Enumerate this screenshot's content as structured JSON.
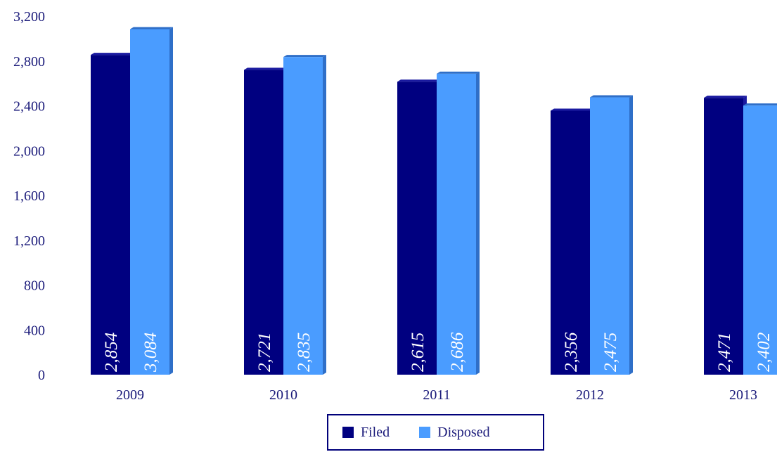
{
  "chart_data": {
    "type": "bar",
    "categories": [
      "2009",
      "2010",
      "2011",
      "2012",
      "2013"
    ],
    "series": [
      {
        "name": "Filed",
        "values": [
          2854,
          2721,
          2615,
          2356,
          2471
        ],
        "labels": [
          "2,854",
          "2,721",
          "2,615",
          "2,356",
          "2,471"
        ]
      },
      {
        "name": "Disposed",
        "values": [
          3084,
          2835,
          2686,
          2475,
          2402
        ],
        "labels": [
          "3,084",
          "2,835",
          "2,686",
          "2,475",
          "2,402"
        ]
      }
    ],
    "ylim": [
      0,
      3200
    ],
    "yticks": [
      0,
      400,
      800,
      1200,
      1600,
      2000,
      2400,
      2800,
      3200
    ],
    "ytick_labels": [
      "0",
      "400",
      "800",
      "1,200",
      "1,600",
      "2,000",
      "2,400",
      "2,800",
      "3,200"
    ],
    "grid": false,
    "legend_position": "bottom-center",
    "colors": {
      "Filed": "#000080",
      "Disposed": "#4a9cff",
      "Filed_side": "#1a1aa0",
      "Disposed_side": "#2f6fc8",
      "text": "#1a1a7a"
    }
  }
}
